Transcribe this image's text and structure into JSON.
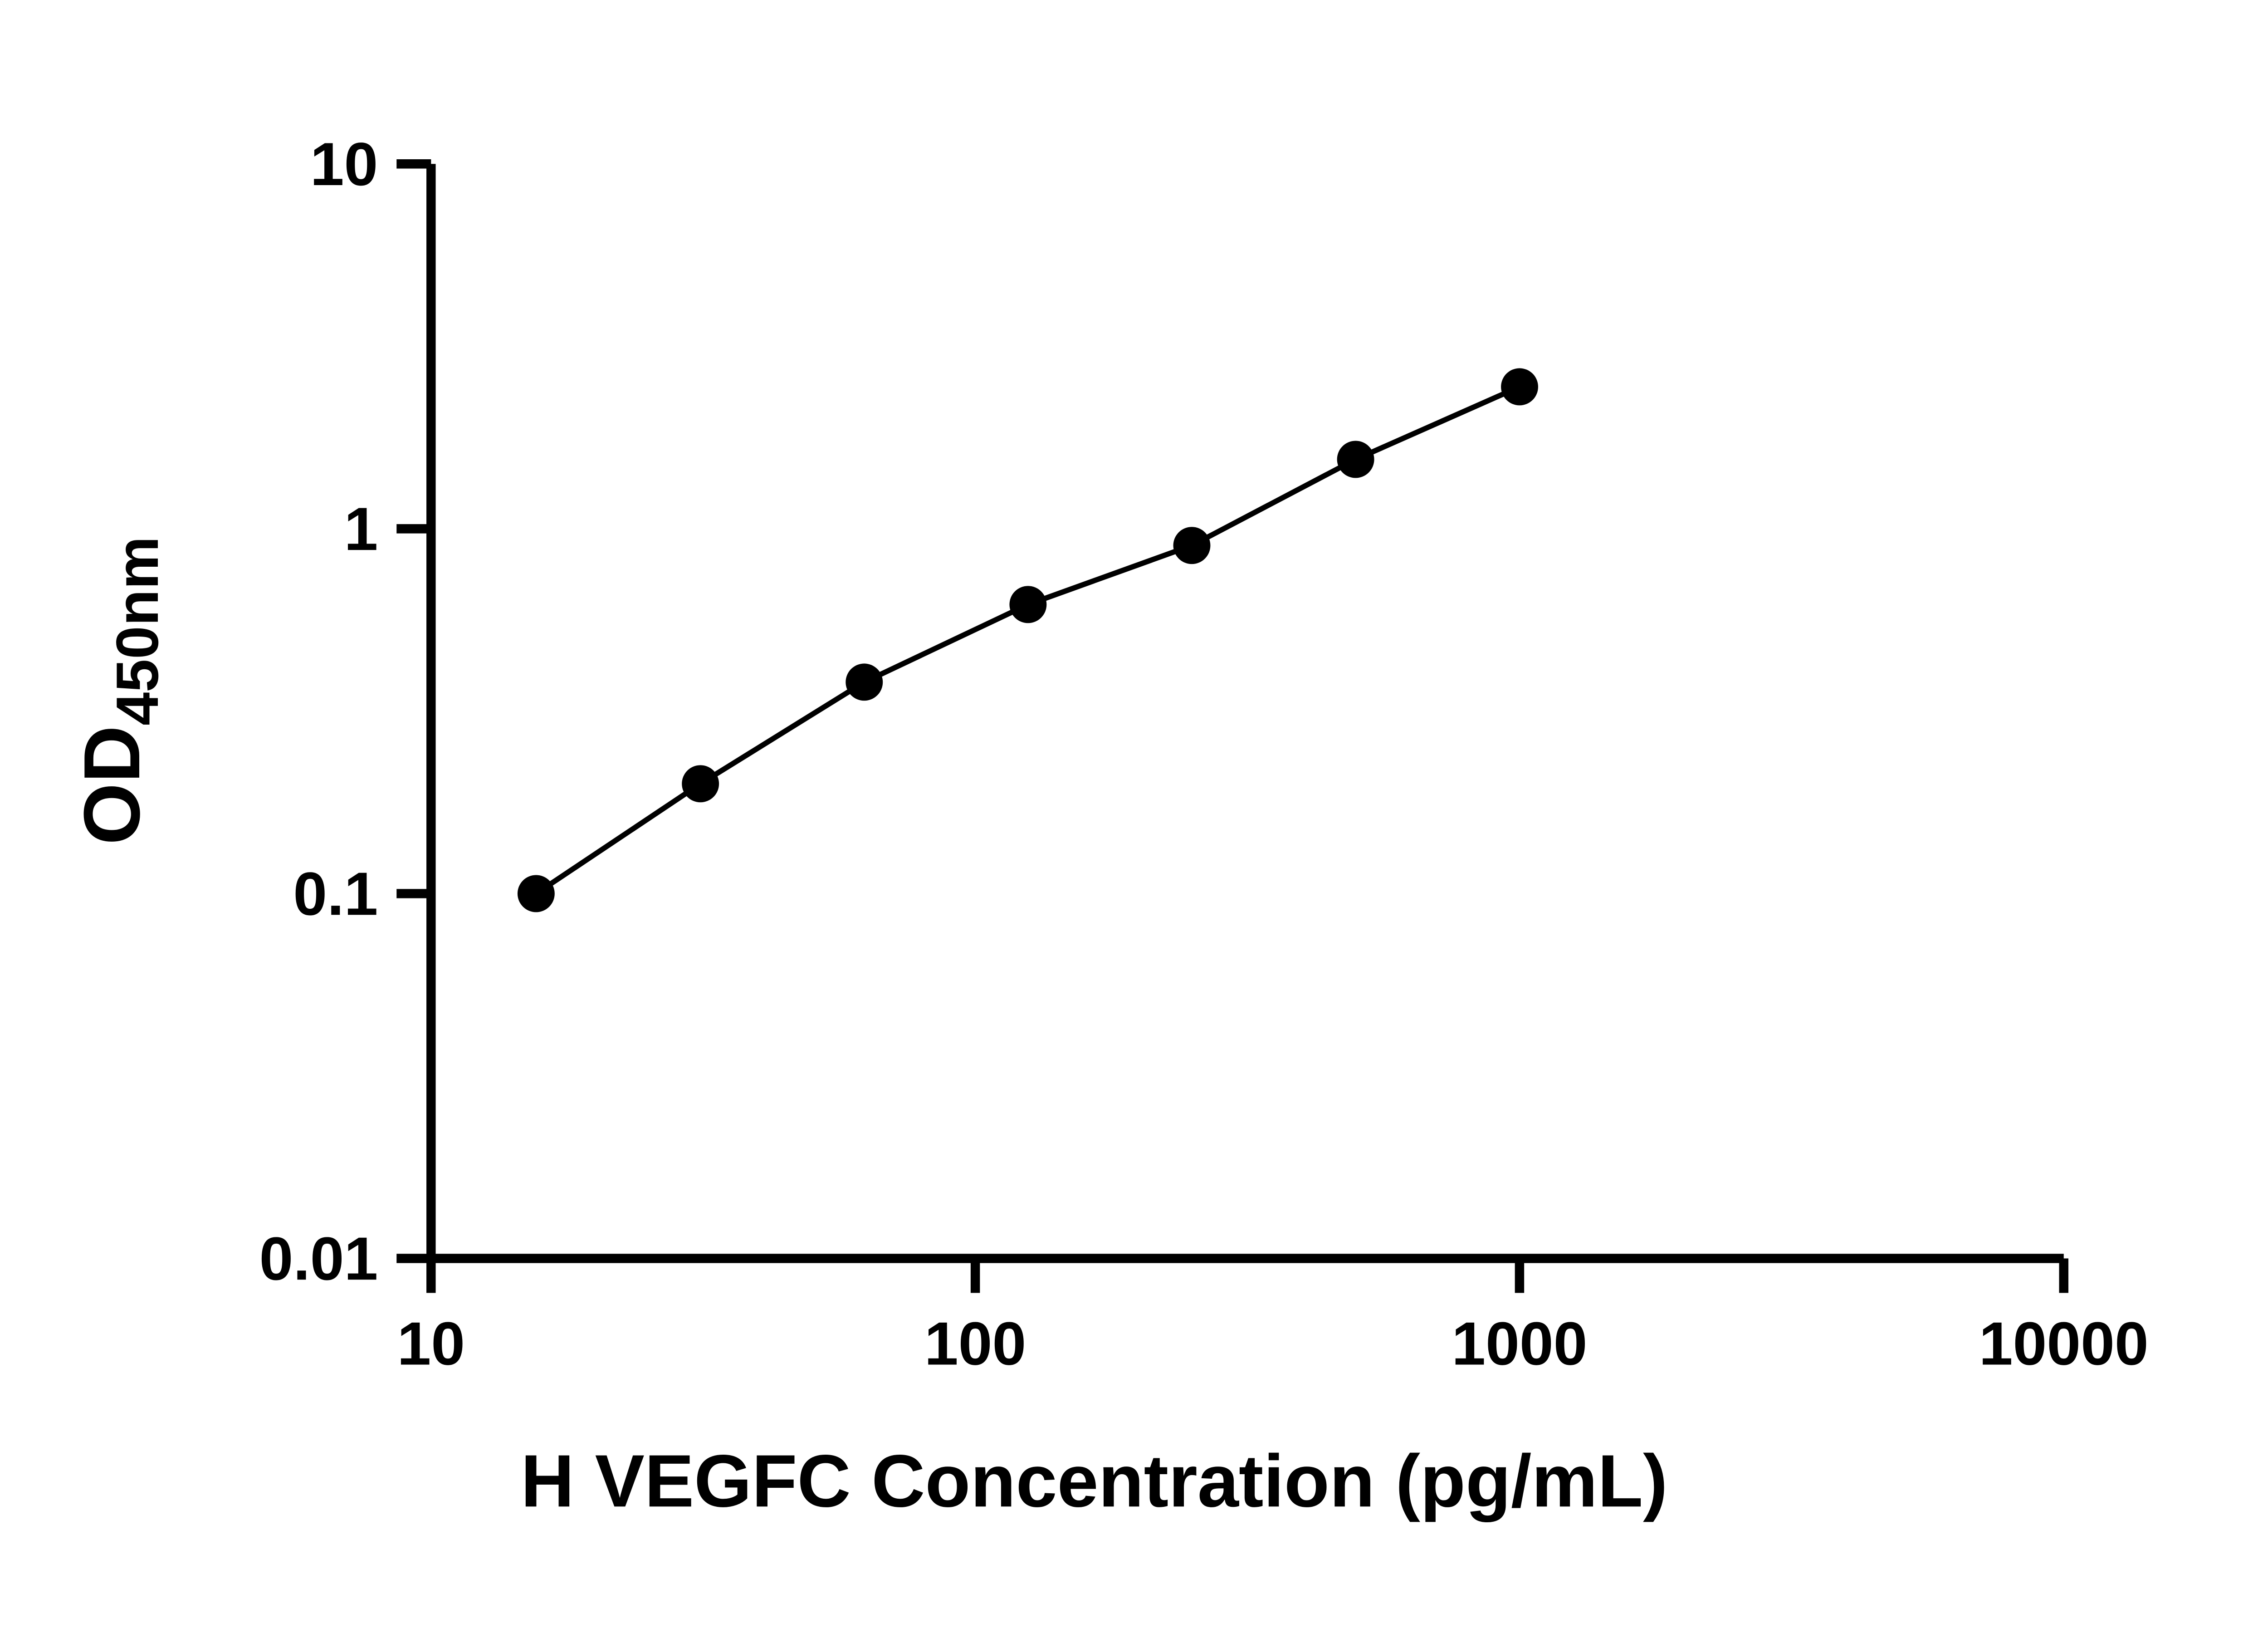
{
  "chart_data": {
    "type": "scatter",
    "title": "",
    "xlabel": "H VEGFC Concentration (pg/mL)",
    "ylabel": "OD",
    "ylabel_subscript": "450nm",
    "x_scale": "log",
    "y_scale": "log",
    "xlim": [
      10,
      10000
    ],
    "ylim": [
      0.01,
      10
    ],
    "x_ticks": [
      10,
      100,
      1000,
      10000
    ],
    "x_tick_labels": [
      "10",
      "100",
      "1000",
      "10000"
    ],
    "y_ticks": [
      0.01,
      0.1,
      1,
      10
    ],
    "y_tick_labels": [
      "0.01",
      "0.1",
      "1",
      "10"
    ],
    "grid": false,
    "legend": "none",
    "background_color": "#ffffff",
    "axis_color": "#000000",
    "marker_shape": "circle",
    "marker_color": "#000000",
    "line_color": "#000000",
    "series": [
      {
        "x": [
          15.6,
          31.25,
          62.5,
          125,
          250,
          500,
          1000
        ],
        "y": [
          0.1,
          0.2,
          0.38,
          0.62,
          0.9,
          1.55,
          2.45
        ]
      }
    ]
  }
}
